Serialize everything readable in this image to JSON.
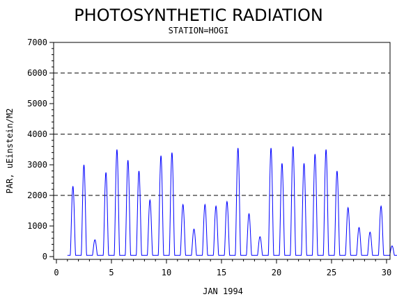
{
  "chart_data": {
    "type": "line",
    "title": "PHOTOSYNTHETIC RADIATION",
    "subtitle": "STATION=HOGI",
    "xlabel": "JAN 1994",
    "ylabel": "PAR, uEinstein/M2",
    "xlim": [
      0,
      30
    ],
    "ylim": [
      0,
      7000
    ],
    "x_ticks": [
      0,
      5,
      10,
      15,
      20,
      25,
      30
    ],
    "y_ticks": [
      0,
      1000,
      2000,
      3000,
      4000,
      5000,
      6000,
      7000
    ],
    "reference_lines": [
      2000,
      4000,
      6000
    ],
    "grid": false,
    "line_color": "#0000ff",
    "data_start_day": 1.0,
    "daily_peaks": [
      2300,
      3000,
      550,
      2750,
      3500,
      3150,
      2800,
      1850,
      3300,
      3400,
      1700,
      900,
      1700,
      1650,
      1800,
      3550,
      1400,
      650,
      3550,
      3050,
      3600,
      3050,
      3350,
      3500,
      2800,
      1600,
      950,
      800,
      1650,
      350
    ]
  }
}
